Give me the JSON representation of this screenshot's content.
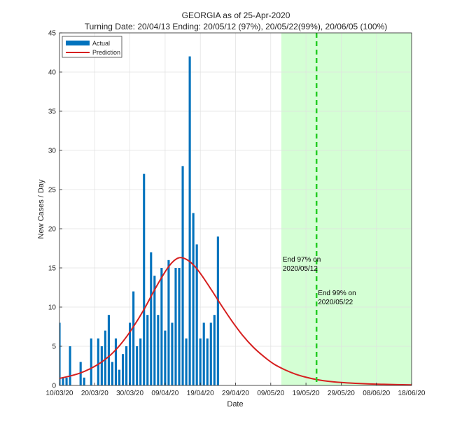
{
  "chart_data": {
    "type": "bar",
    "title": "GEORGIA as of 25-Apr-2020",
    "subtitle": "Turning Date: 20/04/13  Ending: 20/05/12 (97%), 20/05/22(99%), 20/06/05 (100%)",
    "xlabel": "Date",
    "ylabel": "New Cases / Day",
    "xlim": [
      "2020-03-10",
      "2020-06-18"
    ],
    "ylim": [
      0,
      45
    ],
    "x_tick_labels": [
      "10/03/20",
      "20/03/20",
      "30/03/20",
      "09/04/20",
      "19/04/20",
      "29/04/20",
      "09/05/20",
      "19/05/20",
      "29/05/20",
      "08/06/20",
      "18/06/20"
    ],
    "y_tick_labels": [
      "0",
      "5",
      "10",
      "15",
      "20",
      "25",
      "30",
      "35",
      "40",
      "45"
    ],
    "grid": true,
    "legend_position": "top-left",
    "series": [
      {
        "name": "Actual",
        "kind": "bar",
        "color": "#0072BD",
        "dates": [
          "2020-03-10",
          "2020-03-11",
          "2020-03-12",
          "2020-03-13",
          "2020-03-14",
          "2020-03-15",
          "2020-03-16",
          "2020-03-17",
          "2020-03-18",
          "2020-03-19",
          "2020-03-20",
          "2020-03-21",
          "2020-03-22",
          "2020-03-23",
          "2020-03-24",
          "2020-03-25",
          "2020-03-26",
          "2020-03-27",
          "2020-03-28",
          "2020-03-29",
          "2020-03-30",
          "2020-03-31",
          "2020-04-01",
          "2020-04-02",
          "2020-04-03",
          "2020-04-04",
          "2020-04-05",
          "2020-04-06",
          "2020-04-07",
          "2020-04-08",
          "2020-04-09",
          "2020-04-10",
          "2020-04-11",
          "2020-04-12",
          "2020-04-13",
          "2020-04-14",
          "2020-04-15",
          "2020-04-16",
          "2020-04-17",
          "2020-04-18",
          "2020-04-19",
          "2020-04-20",
          "2020-04-21",
          "2020-04-22",
          "2020-04-23",
          "2020-04-24",
          "2020-04-25"
        ],
        "values": [
          8,
          1,
          1,
          5,
          0,
          0,
          3,
          1,
          0,
          6,
          0,
          6,
          5,
          7,
          9,
          3,
          6,
          2,
          4,
          5,
          8,
          12,
          5,
          6,
          27,
          9,
          17,
          14,
          9,
          15,
          7,
          16,
          8,
          15,
          15,
          28,
          6,
          42,
          22,
          18,
          6,
          8,
          6,
          8,
          9,
          19,
          0
        ]
      },
      {
        "name": "Prediction",
        "kind": "line",
        "color": "#D62020",
        "dates": [
          "2020-03-10",
          "2020-03-13",
          "2020-03-16",
          "2020-03-19",
          "2020-03-22",
          "2020-03-25",
          "2020-03-28",
          "2020-03-31",
          "2020-04-03",
          "2020-04-06",
          "2020-04-09",
          "2020-04-11",
          "2020-04-13",
          "2020-04-15",
          "2020-04-17",
          "2020-04-19",
          "2020-04-22",
          "2020-04-25",
          "2020-04-28",
          "2020-05-01",
          "2020-05-04",
          "2020-05-07",
          "2020-05-10",
          "2020-05-13",
          "2020-05-16",
          "2020-05-19",
          "2020-05-22",
          "2020-05-25",
          "2020-05-29",
          "2020-06-02",
          "2020-06-06",
          "2020-06-10",
          "2020-06-14",
          "2020-06-18"
        ],
        "values": [
          0.9,
          1.2,
          1.6,
          2.2,
          3.0,
          4.1,
          5.6,
          7.5,
          9.7,
          12.2,
          14.5,
          15.7,
          16.3,
          16.1,
          15.4,
          14.3,
          12.3,
          10.2,
          8.2,
          6.4,
          4.9,
          3.7,
          2.7,
          2.0,
          1.45,
          1.05,
          0.75,
          0.55,
          0.38,
          0.27,
          0.19,
          0.14,
          0.1,
          0.07
        ]
      }
    ],
    "shaded_region": {
      "from": "2020-05-12",
      "to": "2020-06-18",
      "color": "#ccffcc"
    },
    "vertical_line": {
      "at": "2020-05-22",
      "color": "#22cc22",
      "style": "dashed"
    },
    "annotations": [
      {
        "x": "2020-05-12",
        "y": 15.8,
        "lines": [
          "End 97% on",
          "2020/05/12"
        ]
      },
      {
        "x": "2020-05-22",
        "y": 11.5,
        "lines": [
          "End 99% on",
          "2020/05/22"
        ]
      }
    ]
  }
}
